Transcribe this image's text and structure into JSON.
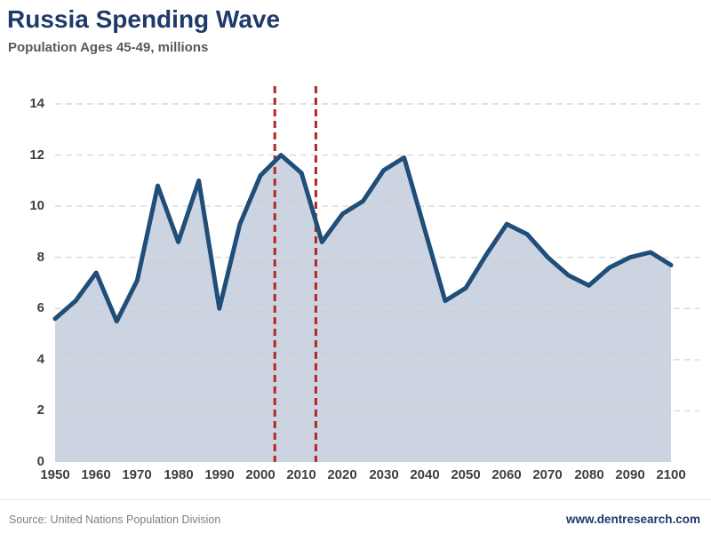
{
  "colors": {
    "title": "#1e3a6a",
    "subtitle": "#595959",
    "axis_label": "#3f3f3f",
    "source_text": "#7f7f7f",
    "website_link": "#1e3a6a"
  },
  "footer": {
    "source": "Source: United Nations Population Division",
    "website": "www.dentresearch.com"
  },
  "chart_data": {
    "type": "area",
    "title": "Russia Spending Wave",
    "subtitle": "Population Ages 45-49, millions",
    "x": [
      1950,
      1955,
      1960,
      1965,
      1970,
      1975,
      1980,
      1985,
      1990,
      1995,
      2000,
      2005,
      2010,
      2015,
      2020,
      2025,
      2030,
      2035,
      2040,
      2045,
      2050,
      2055,
      2060,
      2065,
      2070,
      2075,
      2080,
      2085,
      2090,
      2095,
      2100
    ],
    "values": [
      5.6,
      6.3,
      7.4,
      5.5,
      7.1,
      10.8,
      8.6,
      11.0,
      6.0,
      9.3,
      11.2,
      12.0,
      11.3,
      8.6,
      9.7,
      10.2,
      11.4,
      11.9,
      9.1,
      6.3,
      6.8,
      8.1,
      9.3,
      8.9,
      8.0,
      7.3,
      6.9,
      7.6,
      8.0,
      8.2,
      7.7
    ],
    "xlim": [
      1950,
      2100
    ],
    "ylim": [
      0,
      14
    ],
    "yticks": [
      0,
      2,
      4,
      6,
      8,
      10,
      12,
      14
    ],
    "xticks": [
      1950,
      1960,
      1970,
      1980,
      1990,
      2000,
      2010,
      2020,
      2030,
      2040,
      2050,
      2060,
      2070,
      2080,
      2090,
      2100
    ],
    "grid": "horizontal-dashed",
    "legend": "none",
    "vlines": {
      "years": [
        2003.5,
        2013.5
      ],
      "style": "dashed"
    },
    "colors": {
      "line": "#1f4e79",
      "fill": "#cdd4e1",
      "grid": "#d9d9d9",
      "vline": "#b22626"
    }
  }
}
